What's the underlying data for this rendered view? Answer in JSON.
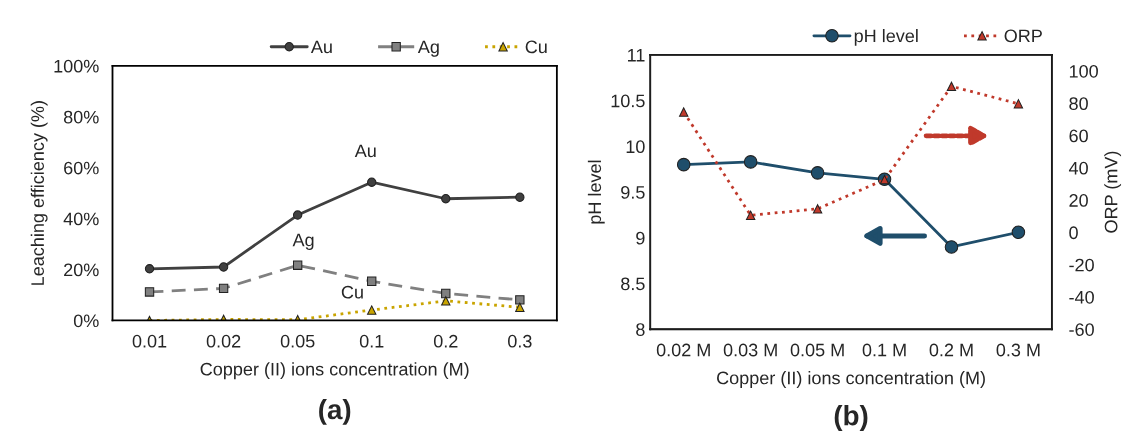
{
  "chart_data": [
    {
      "type": "line",
      "title": "(a)",
      "xlabel": "Copper (II) ions concentration (M)",
      "ylabel": "Leaching efficiency (%)",
      "categories": [
        "0.01",
        "0.02",
        "0.05",
        "0.1",
        "0.2",
        "0.3"
      ],
      "series": [
        {
          "name": "Au",
          "color": "#404040",
          "marker": "circle",
          "line_style": "solid",
          "values": [
            20.3,
            21,
            41.4,
            54.3,
            47.8,
            48.4
          ]
        },
        {
          "name": "Ag",
          "color": "#808080",
          "marker": "square",
          "line_style": "dashed",
          "values": [
            11.2,
            12.6,
            21.7,
            15.4,
            10.6,
            8.1
          ]
        },
        {
          "name": "Cu",
          "color": "#c9a400",
          "marker": "triangle",
          "line_style": "dotted",
          "values": [
            0,
            0.4,
            0.3,
            4.1,
            7.7,
            5.2
          ]
        }
      ],
      "ylim": [
        0,
        100
      ],
      "yticks": [
        {
          "value": 0,
          "label": "0%"
        },
        {
          "value": 20,
          "label": "20%"
        },
        {
          "value": 40,
          "label": "40%"
        },
        {
          "value": 60,
          "label": "60%"
        },
        {
          "value": 80,
          "label": "80%"
        },
        {
          "value": 100,
          "label": "100%"
        }
      ],
      "annotations": [
        "Au",
        "Ag",
        "Cu"
      ],
      "grid": false,
      "legend": "top right"
    },
    {
      "type": "line",
      "title": "(b)",
      "xlabel": "Copper (II) ions concentration (M)",
      "ylabel": "pH level",
      "y2label": "ORP (mV)",
      "categories": [
        "0.02 M",
        "0.03 M",
        "0.05 M",
        "0.1 M",
        "0.2 M",
        "0.3 M"
      ],
      "series": [
        {
          "name": "pH level",
          "color": "#1f4e6b",
          "marker": "circle",
          "line_style": "solid",
          "values": [
            9.8,
            9.83,
            9.71,
            9.64,
            8.9,
            9.06
          ]
        },
        {
          "name": "ORP",
          "color": "#c0392b",
          "marker": "triangle",
          "line_style": "dotted",
          "axis": "y2",
          "values": [
            74.6,
            10.6,
            14.6,
            32.7,
            90.5,
            79.7
          ]
        }
      ],
      "ylim": [
        8,
        11
      ],
      "yticks": [
        8,
        8.5,
        9,
        9.5,
        10,
        10.5,
        11
      ],
      "y2lim": [
        -60,
        110
      ],
      "y2ticks": [
        -60,
        -40,
        -20,
        0,
        20,
        40,
        60,
        80,
        100
      ],
      "grid": false,
      "legend": "top right"
    }
  ]
}
